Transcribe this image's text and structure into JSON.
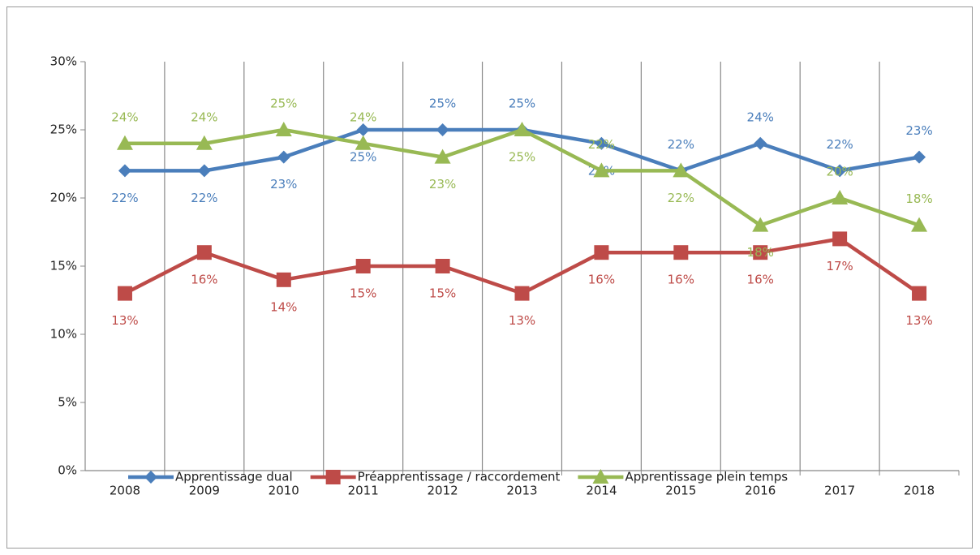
{
  "chart_data": {
    "type": "line",
    "categories": [
      "2008",
      "2009",
      "2010",
      "2011",
      "2012",
      "2013",
      "2014",
      "2015",
      "2016",
      "2017",
      "2018"
    ],
    "series": [
      {
        "name": "Apprentissage dual",
        "color": "#4a7ebb",
        "marker": "diamond",
        "values": [
          22,
          22,
          23,
          25,
          25,
          25,
          24,
          22,
          24,
          22,
          23
        ],
        "value_labels": [
          "22%",
          "22%",
          "23%",
          "25%",
          "25%",
          "25%",
          "24%",
          "22%",
          "24%",
          "22%",
          "23%"
        ]
      },
      {
        "name": "Préapprentissage / raccordement",
        "color": "#be4b48",
        "marker": "square",
        "values": [
          13,
          16,
          14,
          15,
          15,
          13,
          16,
          16,
          16,
          17,
          13
        ],
        "value_labels": [
          "13%",
          "16%",
          "14%",
          "15%",
          "15%",
          "13%",
          "16%",
          "16%",
          "16%",
          "17%",
          "13%"
        ]
      },
      {
        "name": "Apprentissage plein temps",
        "color": "#98b954",
        "marker": "triangle",
        "values": [
          24,
          24,
          25,
          24,
          23,
          25,
          22,
          22,
          18,
          20,
          18
        ],
        "value_labels": [
          "24%",
          "24%",
          "25%",
          "24%",
          "23%",
          "25%",
          "22%",
          "22%",
          "18%",
          "20%",
          "18%"
        ]
      }
    ],
    "ylim": [
      0,
      30
    ],
    "yticks": [
      {
        "value": 0,
        "label": "0%"
      },
      {
        "value": 5,
        "label": "5%"
      },
      {
        "value": 10,
        "label": "10%"
      },
      {
        "value": 15,
        "label": "15%"
      },
      {
        "value": 20,
        "label": "20%"
      },
      {
        "value": 25,
        "label": "25%"
      },
      {
        "value": 30,
        "label": "30%"
      }
    ],
    "grid": "x",
    "legend": "bottom"
  }
}
